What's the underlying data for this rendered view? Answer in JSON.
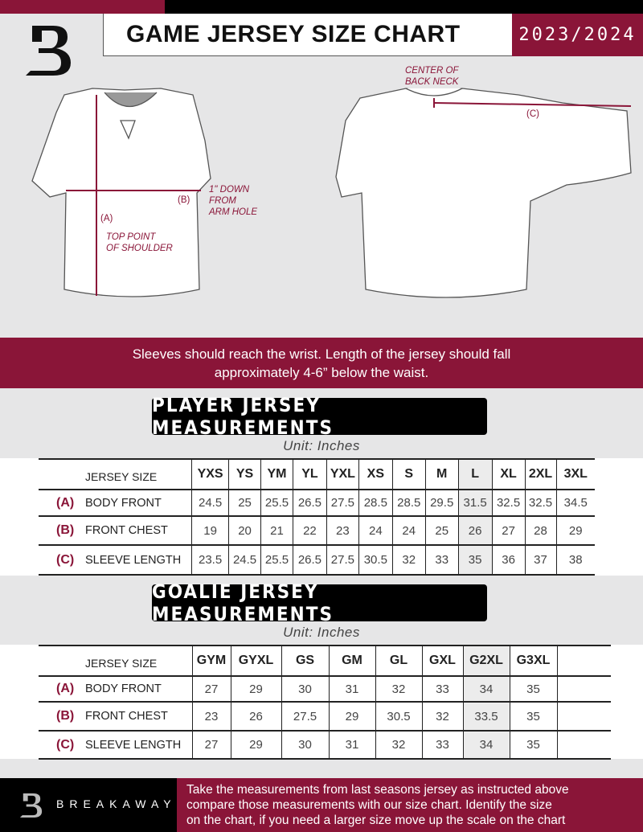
{
  "header": {
    "title": "GAME JERSEY SIZE CHART",
    "season": "2023/2024"
  },
  "diagram": {
    "center_back_neck": [
      "CENTER OF",
      "BACK NECK"
    ],
    "down_from_arm_hole": [
      "1\" DOWN",
      "FROM",
      "ARM HOLE"
    ],
    "top_point_shoulder": [
      "TOP POINT",
      "OF SHOULDER"
    ],
    "label_a": "(A)",
    "label_b": "(B)",
    "label_c": "(C)"
  },
  "band_text": [
    "Sleeves should reach the wrist. Length of the jersey should fall",
    "approximately 4-6” below the waist."
  ],
  "player": {
    "title": "PLAYER JERSEY MEASUREMENTS",
    "unit": "Unit: Inches",
    "size_header": "JERSEY SIZE",
    "sizes": [
      "YXS",
      "YS",
      "YM",
      "YL",
      "YXL",
      "XS",
      "S",
      "M",
      "L",
      "XL",
      "2XL",
      "3XL"
    ],
    "rows": [
      {
        "letter": "(A)",
        "label": "BODY FRONT",
        "values": [
          "24.5",
          "25",
          "25.5",
          "26.5",
          "27.5",
          "28.5",
          "28.5",
          "29.5",
          "31.5",
          "32.5",
          "32.5",
          "34.5"
        ]
      },
      {
        "letter": "(B)",
        "label": "FRONT CHEST",
        "values": [
          "19",
          "20",
          "21",
          "22",
          "23",
          "24",
          "24",
          "25",
          "26",
          "27",
          "28",
          "29"
        ]
      },
      {
        "letter": "(C)",
        "label": "SLEEVE LENGTH",
        "values": [
          "23.5",
          "24.5",
          "25.5",
          "26.5",
          "27.5",
          "30.5",
          "32",
          "33",
          "35",
          "36",
          "37",
          "38"
        ]
      }
    ]
  },
  "goalie": {
    "title": "GOALIE JERSEY MEASUREMENTS",
    "unit": "Unit: Inches",
    "size_header": "JERSEY SIZE",
    "sizes": [
      "GYM",
      "GYXL",
      "GS",
      "GM",
      "GL",
      "GXL",
      "G2XL",
      "G3XL",
      ""
    ],
    "rows": [
      {
        "letter": "(A)",
        "label": "BODY FRONT",
        "values": [
          "27",
          "29",
          "30",
          "31",
          "32",
          "33",
          "34",
          "35",
          ""
        ]
      },
      {
        "letter": "(B)",
        "label": "FRONT CHEST",
        "values": [
          "23",
          "26",
          "27.5",
          "29",
          "30.5",
          "32",
          "33.5",
          "35",
          ""
        ]
      },
      {
        "letter": "(C)",
        "label": "SLEEVE LENGTH",
        "values": [
          "27",
          "29",
          "30",
          "31",
          "32",
          "33",
          "34",
          "35",
          ""
        ]
      }
    ]
  },
  "footer": {
    "brand": "BREAKAWAY",
    "text": [
      "Take the measurements from last seasons jersey as instructed above",
      "compare those measurements  with our size chart. Identify the size",
      "on the chart, if you need a larger size move up the scale on the chart"
    ]
  },
  "colors": {
    "accent": "#8a1538",
    "black": "#000000",
    "background": "#e6e6e7"
  }
}
